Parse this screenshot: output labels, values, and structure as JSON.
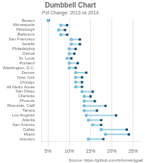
{
  "chart_data": {
    "type": "dumbbell",
    "title": "Dumbbell Chart",
    "subtitle": "Pct Change: 2013 vs 2014",
    "annotations": [
      "Source: https://github.com/hrbrmstr/ggalt"
    ],
    "orientation": "horizontal",
    "categories": [
      "Boston",
      "Minneapolis",
      "Pittsburgh",
      "Baltimore",
      "San Francisco",
      "Seattle",
      "Philadelphia",
      "Detroit",
      "St. Louis",
      "Portland",
      "Washington, D.C.",
      "Denver",
      "New York",
      "Chicago",
      "All Metro Areas",
      "San Diego",
      "Charlotte",
      "Phoenix",
      "Riverside, Calif",
      "Tampa",
      "Los Angeles",
      "Atlanta",
      "San Antonio",
      "Dallas",
      "Miami",
      "Houston"
    ],
    "color": "#9ecfe0",
    "series": [
      {
        "color": "#7fbcd4",
        "marker": "circle",
        "values": [
          5.0,
          8.0,
          7.5,
          8.0,
          10.5,
          10.5,
          10.0,
          10.0,
          9.5,
          10.0,
          10.0,
          11.5,
          11.5,
          11.5,
          11.5,
          13.0,
          13.5,
          13.5,
          13.5,
          13.5,
          14.0,
          14.5,
          15.5,
          17.5,
          18.5,
          14.5
        ]
      },
      {
        "color": "#1c4f72",
        "marker": "square",
        "values": [
          5.2,
          9.5,
          9.0,
          9.5,
          12.5,
          12.5,
          11.5,
          11.2,
          10.5,
          12.0,
          11.5,
          14.0,
          13.0,
          13.0,
          13.0,
          15.5,
          15.0,
          16.0,
          18.5,
          16.5,
          21.0,
          17.5,
          17.5,
          23.5,
          24.0,
          18.0
        ]
      }
    ],
    "xlim": [
      3.5,
      26.5
    ],
    "xticks": [
      {
        "value": 5,
        "label": "5%"
      },
      {
        "value": 10,
        "label": "10%"
      },
      {
        "value": 15,
        "label": "15%"
      },
      {
        "value": 20,
        "label": "20%"
      },
      {
        "value": 25,
        "label": "25%"
      }
    ],
    "grid": true
  }
}
